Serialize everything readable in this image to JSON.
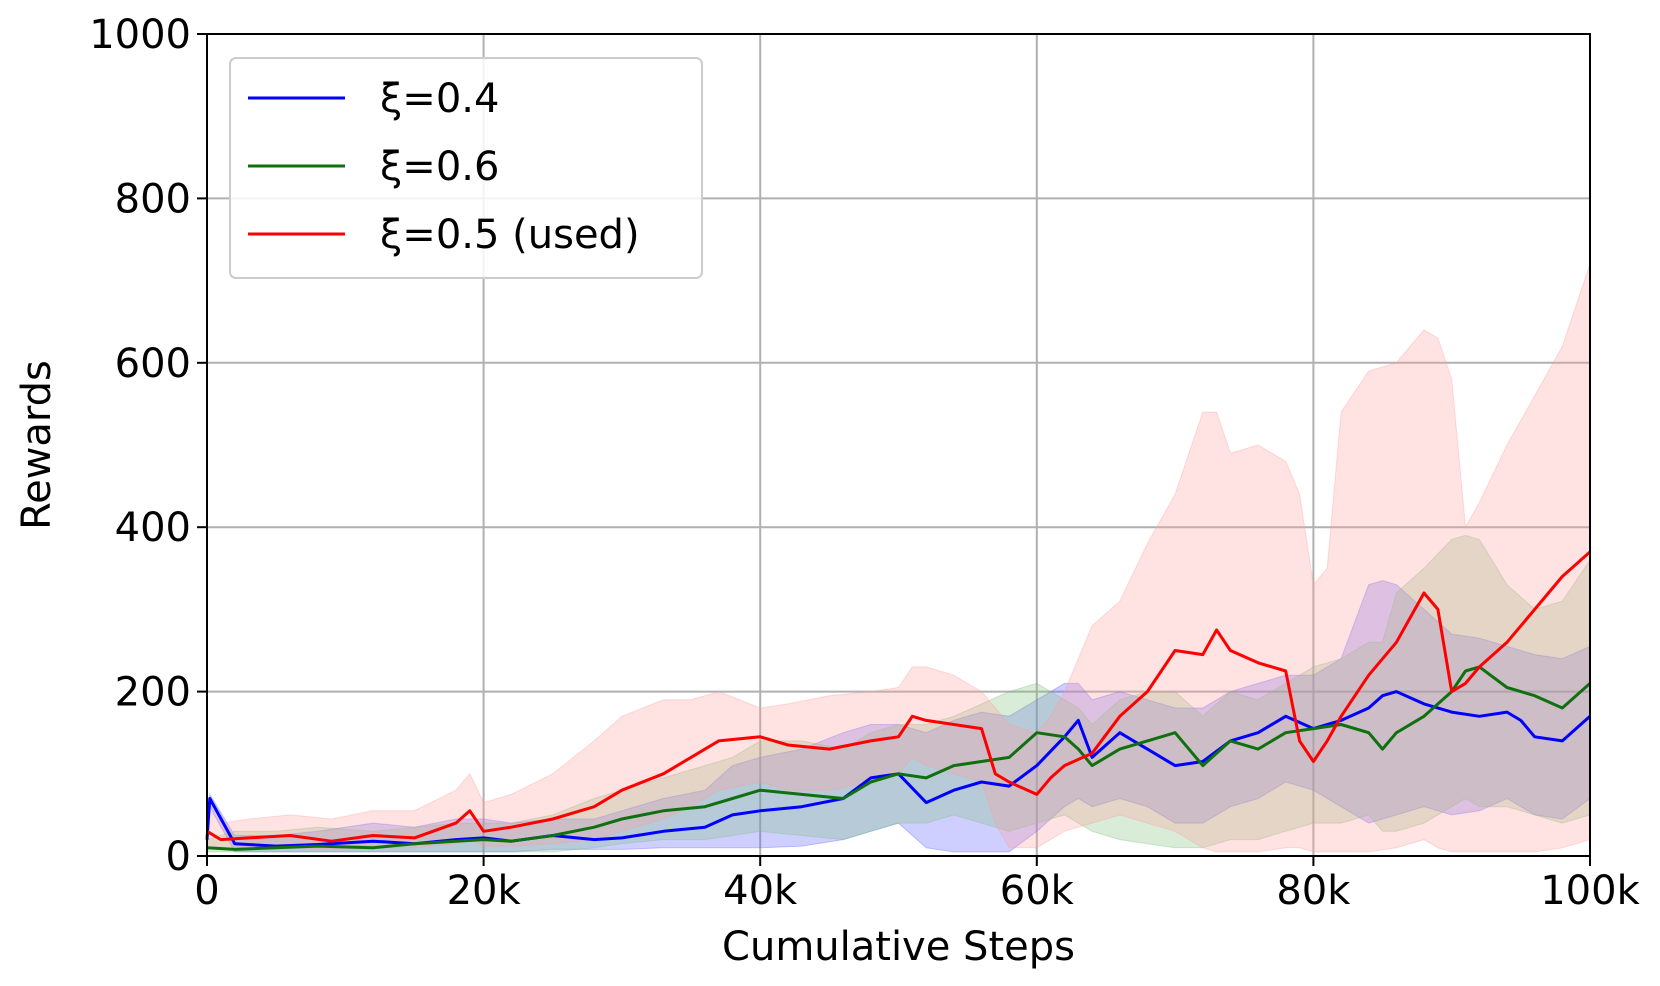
{
  "chart_data": {
    "type": "line",
    "xlabel": "Cumulative Steps",
    "ylabel": "Rewards",
    "xlim": [
      0,
      100000
    ],
    "ylim": [
      0,
      1000
    ],
    "x_ticks": [
      0,
      20000,
      40000,
      60000,
      80000,
      100000
    ],
    "x_tick_labels": [
      "0",
      "20k",
      "40k",
      "60k",
      "80k",
      "100k"
    ],
    "y_ticks": [
      0,
      200,
      400,
      600,
      800,
      1000
    ],
    "y_tick_labels": [
      "0",
      "200",
      "400",
      "600",
      "800",
      "1000"
    ],
    "grid": true,
    "legend_position": "top-left",
    "series": [
      {
        "name": "ξ=0.4",
        "color": "#0000ff",
        "band_color": "#6060ff",
        "x": [
          0,
          200,
          2000,
          5000,
          8000,
          12000,
          15000,
          18000,
          20000,
          22000,
          25000,
          28000,
          30000,
          33000,
          36000,
          38000,
          40000,
          43000,
          46000,
          48000,
          50000,
          52000,
          54000,
          56000,
          58000,
          60000,
          62000,
          63000,
          64000,
          66000,
          68000,
          70000,
          72000,
          74000,
          76000,
          78000,
          80000,
          82000,
          84000,
          85000,
          86000,
          88000,
          90000,
          92000,
          94000,
          95000,
          96000,
          98000,
          100000
        ],
        "mean": [
          20,
          70,
          15,
          12,
          14,
          18,
          15,
          20,
          22,
          18,
          25,
          20,
          22,
          30,
          35,
          50,
          55,
          60,
          70,
          95,
          100,
          65,
          80,
          90,
          85,
          110,
          145,
          165,
          120,
          150,
          130,
          110,
          115,
          140,
          150,
          170,
          155,
          165,
          180,
          195,
          200,
          185,
          175,
          170,
          175,
          165,
          145,
          140,
          170
        ],
        "upper": [
          30,
          75,
          25,
          25,
          30,
          40,
          35,
          45,
          45,
          40,
          45,
          45,
          55,
          70,
          80,
          110,
          120,
          130,
          150,
          160,
          160,
          150,
          165,
          175,
          170,
          190,
          210,
          210,
          190,
          200,
          190,
          180,
          180,
          200,
          210,
          220,
          220,
          240,
          330,
          335,
          330,
          300,
          270,
          265,
          255,
          250,
          245,
          240,
          255
        ],
        "lower": [
          5,
          60,
          5,
          5,
          5,
          5,
          5,
          5,
          5,
          5,
          8,
          8,
          8,
          10,
          10,
          10,
          10,
          12,
          20,
          30,
          40,
          10,
          5,
          5,
          5,
          30,
          60,
          70,
          60,
          70,
          60,
          40,
          40,
          60,
          70,
          90,
          80,
          60,
          40,
          45,
          50,
          60,
          50,
          55,
          70,
          60,
          50,
          45,
          70
        ]
      },
      {
        "name": "ξ=0.6",
        "color": "#107010",
        "band_color": "#7fbf7f",
        "x": [
          0,
          2000,
          5000,
          8000,
          12000,
          15000,
          18000,
          20000,
          22000,
          25000,
          28000,
          30000,
          33000,
          36000,
          38000,
          40000,
          43000,
          46000,
          48000,
          50000,
          52000,
          54000,
          56000,
          58000,
          60000,
          62000,
          63000,
          64000,
          66000,
          68000,
          70000,
          72000,
          74000,
          76000,
          78000,
          80000,
          82000,
          84000,
          85000,
          86000,
          88000,
          90000,
          91000,
          92000,
          94000,
          96000,
          98000,
          100000
        ],
        "mean": [
          10,
          8,
          10,
          12,
          10,
          15,
          18,
          20,
          18,
          25,
          35,
          45,
          55,
          60,
          70,
          80,
          75,
          70,
          90,
          100,
          95,
          110,
          115,
          120,
          150,
          145,
          130,
          110,
          130,
          140,
          150,
          110,
          140,
          130,
          150,
          155,
          160,
          150,
          130,
          150,
          170,
          200,
          225,
          230,
          205,
          195,
          180,
          210
        ],
        "upper": [
          20,
          30,
          30,
          35,
          30,
          35,
          40,
          40,
          40,
          50,
          70,
          80,
          95,
          110,
          120,
          140,
          140,
          130,
          150,
          160,
          160,
          170,
          185,
          200,
          210,
          190,
          180,
          160,
          190,
          200,
          200,
          170,
          200,
          190,
          210,
          230,
          240,
          260,
          260,
          320,
          350,
          385,
          390,
          385,
          330,
          300,
          310,
          360
        ],
        "lower": [
          5,
          5,
          5,
          5,
          5,
          5,
          5,
          5,
          5,
          5,
          10,
          15,
          20,
          20,
          25,
          30,
          25,
          20,
          30,
          40,
          40,
          50,
          40,
          30,
          40,
          50,
          40,
          30,
          20,
          15,
          10,
          10,
          20,
          20,
          30,
          40,
          40,
          50,
          30,
          30,
          40,
          60,
          70,
          60,
          60,
          50,
          40,
          50
        ]
      },
      {
        "name": "ξ=0.5 (used)",
        "color": "#ff0000",
        "band_color": "#ff9e9e",
        "x": [
          0,
          1000,
          3000,
          6000,
          9000,
          12000,
          15000,
          18000,
          19000,
          20000,
          22000,
          25000,
          28000,
          30000,
          33000,
          35000,
          37000,
          40000,
          42000,
          45000,
          48000,
          50000,
          51000,
          52000,
          54000,
          56000,
          57000,
          58000,
          60000,
          61000,
          62000,
          64000,
          66000,
          68000,
          70000,
          72000,
          73000,
          74000,
          76000,
          78000,
          79000,
          80000,
          81000,
          82000,
          84000,
          86000,
          88000,
          89000,
          90000,
          91000,
          92000,
          94000,
          96000,
          98000,
          100000
        ],
        "mean": [
          30,
          20,
          22,
          25,
          18,
          25,
          22,
          40,
          55,
          30,
          35,
          45,
          60,
          80,
          100,
          120,
          140,
          145,
          135,
          130,
          140,
          145,
          170,
          165,
          160,
          155,
          100,
          90,
          75,
          95,
          110,
          125,
          170,
          200,
          250,
          245,
          275,
          250,
          235,
          225,
          140,
          115,
          140,
          170,
          220,
          260,
          320,
          300,
          200,
          210,
          230,
          260,
          300,
          340,
          370
        ],
        "upper": [
          60,
          40,
          45,
          50,
          45,
          55,
          55,
          80,
          100,
          65,
          75,
          100,
          140,
          170,
          190,
          190,
          200,
          180,
          185,
          195,
          200,
          205,
          230,
          230,
          220,
          200,
          180,
          160,
          150,
          170,
          200,
          280,
          310,
          380,
          440,
          540,
          540,
          490,
          500,
          480,
          440,
          330,
          350,
          540,
          590,
          600,
          640,
          630,
          580,
          400,
          430,
          500,
          560,
          620,
          720
        ],
        "lower": [
          10,
          8,
          10,
          10,
          8,
          10,
          10,
          15,
          20,
          12,
          12,
          15,
          20,
          30,
          45,
          60,
          80,
          90,
          80,
          80,
          90,
          100,
          120,
          110,
          100,
          90,
          40,
          10,
          10,
          20,
          30,
          40,
          50,
          40,
          30,
          10,
          5,
          5,
          5,
          10,
          10,
          5,
          5,
          5,
          5,
          10,
          20,
          10,
          5,
          5,
          5,
          5,
          5,
          10,
          20
        ]
      }
    ]
  }
}
